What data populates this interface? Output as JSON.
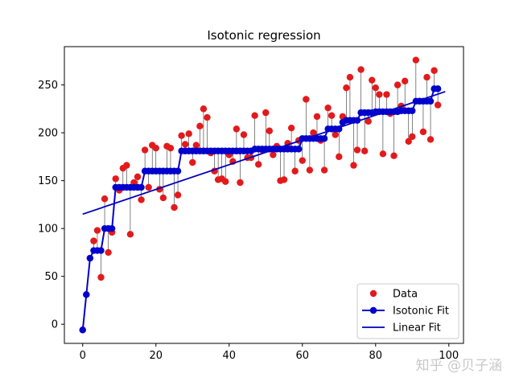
{
  "chart_data": {
    "type": "scatter",
    "title": "Isotonic regression",
    "xlabel": "",
    "ylabel": "",
    "xlim": [
      -5,
      104
    ],
    "ylim": [
      -20,
      290
    ],
    "xticks": [
      0,
      20,
      40,
      60,
      80,
      100
    ],
    "yticks": [
      0,
      50,
      100,
      150,
      200,
      250
    ],
    "grid": false,
    "legend_position": "lower-right",
    "colors": {
      "data": "#e31a1c",
      "isotonic": "#0000cc",
      "linear": "#0000bb",
      "segments": "#333333"
    },
    "data_y": [
      -6,
      31,
      69,
      87,
      98,
      49,
      131,
      75,
      96,
      152,
      140,
      163,
      166,
      94,
      148,
      154,
      130,
      182,
      143,
      187,
      184,
      141,
      132,
      186,
      184,
      122,
      135,
      197,
      188,
      199,
      169,
      187,
      207,
      225,
      216,
      179,
      160,
      151,
      152,
      149,
      177,
      170,
      204,
      148,
      198,
      174,
      174,
      218,
      167,
      182,
      221,
      202,
      177,
      186,
      150,
      151,
      189,
      205,
      160,
      192,
      171,
      235,
      161,
      200,
      217,
      192,
      161,
      226,
      218,
      198,
      175,
      217,
      247,
      258,
      166,
      182,
      266,
      181,
      212,
      255,
      247,
      240,
      178,
      240,
      220,
      176,
      250,
      228,
      254,
      191,
      196,
      276,
      233,
      201,
      258,
      193,
      265,
      229
    ],
    "isotonic_y": [
      -6,
      31,
      69,
      77,
      77,
      77,
      100,
      100,
      100,
      143,
      143,
      143,
      143,
      143,
      143,
      143,
      143,
      160,
      160,
      160,
      160,
      160,
      160,
      160,
      160,
      160,
      160,
      181,
      181,
      181,
      181,
      181,
      181,
      181,
      181,
      181,
      181,
      181,
      181,
      181,
      181,
      181,
      181,
      181,
      181,
      181,
      181,
      183,
      183,
      183,
      183,
      183,
      183,
      183,
      183,
      183,
      183,
      183,
      183,
      183,
      194,
      194,
      194,
      194,
      194,
      194,
      194,
      204,
      204,
      204,
      204,
      211,
      213,
      213,
      213,
      213,
      221,
      221,
      221,
      221,
      222,
      222,
      222,
      222,
      222,
      222,
      222,
      223,
      223,
      223,
      223,
      233,
      233,
      233,
      233,
      233,
      246,
      246
    ],
    "linear_fit": {
      "x": [
        0,
        99
      ],
      "y": [
        115,
        243
      ]
    },
    "legend": [
      {
        "label": "Data",
        "marker": "dot"
      },
      {
        "label": "Isotonic Fit",
        "marker": "dot-line"
      },
      {
        "label": "Linear Fit",
        "marker": "line"
      }
    ]
  },
  "watermark": "知乎 @贝子涵"
}
